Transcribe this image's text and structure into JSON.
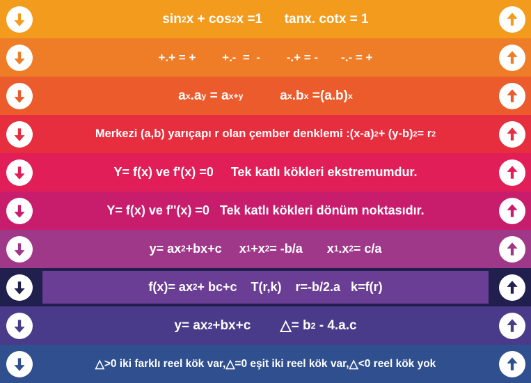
{
  "rows": [
    {
      "side_bg": "#f39b1d",
      "center_bg": "#f39b1d",
      "arrow_fill": "#f39b1d",
      "html": "sin<sup>2</sup> x&nbsp;+&nbsp;cos<sup>2</sup> x&nbsp;=1&nbsp;&nbsp;&nbsp;&nbsp;&nbsp;&nbsp;tanx.&nbsp;cotx&nbsp;=&nbsp;1",
      "font_size": 19
    },
    {
      "side_bg": "#ef7d27",
      "center_bg": "#ef7d27",
      "arrow_fill": "#ef7d27",
      "html": "+.+&nbsp;=&nbsp;+&nbsp;&nbsp;&nbsp;&nbsp;&nbsp;&nbsp;&nbsp;&nbsp;+.-&nbsp;&nbsp;=&nbsp;&nbsp;-&nbsp;&nbsp;&nbsp;&nbsp;&nbsp;&nbsp;&nbsp;&nbsp;-.+&nbsp;=&nbsp;-&nbsp;&nbsp;&nbsp;&nbsp;&nbsp;&nbsp;&nbsp;-.-&nbsp;=&nbsp;+",
      "font_size": 17
    },
    {
      "side_bg": "#eb5b2c",
      "center_bg": "#eb5b2c",
      "arrow_fill": "#eb5b2c",
      "html": "a<sup>x</sup>.a<sup>y</sup>&nbsp;=&nbsp;a<sup>x+y</sup>&nbsp;&nbsp;&nbsp;&nbsp;&nbsp;&nbsp;&nbsp;&nbsp;&nbsp;&nbsp;a<sup>x</sup>.b<sup>x</sup>&nbsp;=(a.b)<sup>x</sup>",
      "font_size": 19
    },
    {
      "side_bg": "#e62e3e",
      "center_bg": "#e62e3e",
      "arrow_fill": "#e62e3e",
      "html": "Merkezi (a,b) yarıçapı r olan çember denklemi :(x-a)<sup>2</sup>+&nbsp;(y-b)<sup>2</sup>=&nbsp;r<sup>2</sup>",
      "font_size": 16.5
    },
    {
      "side_bg": "#e11e58",
      "center_bg": "#e11e58",
      "arrow_fill": "#e11e58",
      "html": "Y= f(x) ve f'(x) =0&nbsp;&nbsp;&nbsp;&nbsp;&nbsp;Tek katlı kökleri ekstremumdur.",
      "font_size": 18
    },
    {
      "side_bg": "#c81d6d",
      "center_bg": "#c81d6d",
      "arrow_fill": "#c81d6d",
      "html": "Y= f(x) ve f''(x) =0&nbsp;&nbsp;&nbsp;Tek katlı kökleri dönüm noktasıdır.",
      "font_size": 18
    },
    {
      "side_bg": "#a0388a",
      "center_bg": "#a0388a",
      "arrow_fill": "#a0388a",
      "html": "y= ax<sup>2</sup>+bx+c&nbsp;&nbsp;&nbsp;&nbsp;&nbsp;x<sub>1</sub>+x<sub>2</sub>=&nbsp;-b/a&nbsp;&nbsp;&nbsp;&nbsp;&nbsp;&nbsp;&nbsp;x<sub>1</sub>.x<sub>2</sub>=&nbsp;c/a",
      "font_size": 18
    },
    {
      "side_bg": "#201f4e",
      "center_bg": "#6a3e94",
      "arrow_fill": "#201f4e",
      "html": "f(x)= ax<sup>2</sup>+&nbsp;bc+c&nbsp;&nbsp;&nbsp;&nbsp;T(r,k)&nbsp;&nbsp;&nbsp;&nbsp;r=-b/2.a&nbsp;&nbsp;&nbsp;k=f(r)",
      "font_size": 18
    },
    {
      "side_bg": "#4a3a8a",
      "center_bg": "#4a3a8a",
      "arrow_fill": "#4a3a8a",
      "html": "y= ax<sup>2</sup>+bx+c&nbsp;&nbsp;&nbsp;&nbsp;&nbsp;&nbsp;&nbsp;&nbsp;<span class=\"tri\">△</span>=&nbsp;b<sup>2</sup>&nbsp;-&nbsp;4.a.c",
      "font_size": 19
    },
    {
      "side_bg": "#2f4f8e",
      "center_bg": "#2f4f8e",
      "arrow_fill": "#2f4f8e",
      "html": "<span class=\"tri\">△</span>&gt;0 iki farklı reel kök var, <span class=\"tri\">△</span>=0 eşit iki reel kök var,<span class=\"tri\">△</span>&lt;0 reel kök yok",
      "font_size": 15.5
    }
  ]
}
